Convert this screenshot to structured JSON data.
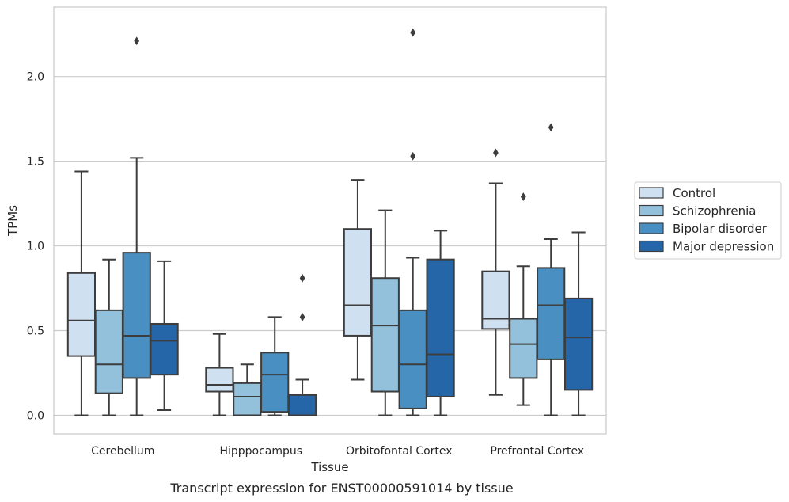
{
  "caption": "Transcript expression for ENST00000591014 by tissue",
  "chart_data": {
    "type": "boxplot",
    "xlabel": "Tissue",
    "ylabel": "TPMs",
    "ylim": [
      -0.11,
      2.41
    ],
    "yticks": [
      0.0,
      0.5,
      1.0,
      1.5,
      2.0
    ],
    "ytick_labels": [
      "0.0",
      "0.5",
      "1.0",
      "1.5",
      "2.0"
    ],
    "grid": "horizontal",
    "legend_position": "right",
    "categories": [
      "Cerebellum",
      "Hipppocampus",
      "Orbitofontal Cortex",
      "Prefrontal Cortex"
    ],
    "series": [
      {
        "name": "Control",
        "color": "#cfe0f0",
        "boxes": [
          {
            "whislo": 0.0,
            "q1": 0.35,
            "med": 0.56,
            "q3": 0.84,
            "whishi": 1.44,
            "fliers": []
          },
          {
            "whislo": 0.0,
            "q1": 0.14,
            "med": 0.18,
            "q3": 0.28,
            "whishi": 0.48,
            "fliers": []
          },
          {
            "whislo": 0.21,
            "q1": 0.47,
            "med": 0.65,
            "q3": 1.1,
            "whishi": 1.39,
            "fliers": []
          },
          {
            "whislo": 0.12,
            "q1": 0.51,
            "med": 0.57,
            "q3": 0.85,
            "whishi": 1.37,
            "fliers": [
              1.55
            ]
          }
        ]
      },
      {
        "name": "Schizophrenia",
        "color": "#93c0db",
        "boxes": [
          {
            "whislo": 0.0,
            "q1": 0.13,
            "med": 0.3,
            "q3": 0.62,
            "whishi": 0.92,
            "fliers": []
          },
          {
            "whislo": 0.0,
            "q1": 0.0,
            "med": 0.11,
            "q3": 0.19,
            "whishi": 0.3,
            "fliers": []
          },
          {
            "whislo": 0.0,
            "q1": 0.14,
            "med": 0.53,
            "q3": 0.81,
            "whishi": 1.21,
            "fliers": []
          },
          {
            "whislo": 0.06,
            "q1": 0.22,
            "med": 0.42,
            "q3": 0.57,
            "whishi": 0.88,
            "fliers": [
              1.29
            ]
          }
        ]
      },
      {
        "name": "Bipolar disorder",
        "color": "#4a8fc1",
        "boxes": [
          {
            "whislo": 0.0,
            "q1": 0.22,
            "med": 0.47,
            "q3": 0.96,
            "whishi": 1.52,
            "fliers": [
              2.21
            ]
          },
          {
            "whislo": 0.0,
            "q1": 0.02,
            "med": 0.24,
            "q3": 0.37,
            "whishi": 0.58,
            "fliers": []
          },
          {
            "whislo": 0.0,
            "q1": 0.04,
            "med": 0.3,
            "q3": 0.62,
            "whishi": 0.93,
            "fliers": [
              1.53,
              2.26
            ]
          },
          {
            "whislo": 0.0,
            "q1": 0.33,
            "med": 0.65,
            "q3": 0.87,
            "whishi": 1.04,
            "fliers": [
              1.7
            ]
          }
        ]
      },
      {
        "name": "Major depression",
        "color": "#2466a8",
        "boxes": [
          {
            "whislo": 0.03,
            "q1": 0.24,
            "med": 0.44,
            "q3": 0.54,
            "whishi": 0.91,
            "fliers": []
          },
          {
            "whislo": 0.0,
            "q1": 0.0,
            "med": 0.0,
            "q3": 0.12,
            "whishi": 0.21,
            "fliers": [
              0.58,
              0.81
            ]
          },
          {
            "whislo": 0.0,
            "q1": 0.11,
            "med": 0.36,
            "q3": 0.92,
            "whishi": 1.09,
            "fliers": []
          },
          {
            "whislo": 0.0,
            "q1": 0.15,
            "med": 0.46,
            "q3": 0.69,
            "whishi": 1.08,
            "fliers": []
          }
        ]
      }
    ]
  }
}
